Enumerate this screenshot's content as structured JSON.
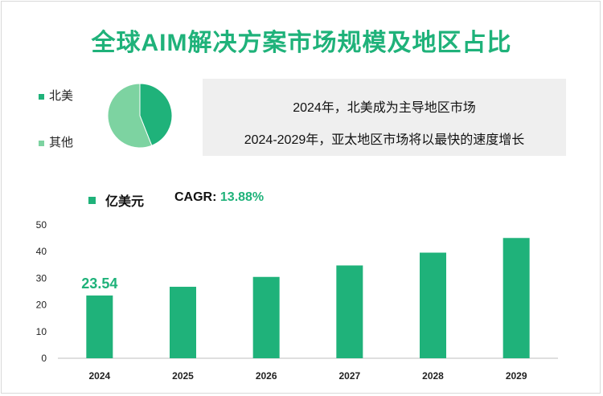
{
  "title": "全球AIM解决方案市场规模及地区占比",
  "pie": {
    "legend": [
      {
        "label": "北美",
        "color": "#1fb27a"
      },
      {
        "label": "其他",
        "color": "#7dd3a1"
      }
    ],
    "values": [
      44,
      56
    ]
  },
  "callout": {
    "line1": "2024年，北美成为主导地区市场",
    "line2": "2024-2029年，亚太地区市场将以最快的速度增长"
  },
  "unit_label": "亿美元",
  "cagr": {
    "label": "CAGR:",
    "value": "13.88%"
  },
  "colors": {
    "bar": "#1fb27a",
    "accent": "#1fb27a"
  },
  "chart_data": {
    "type": "bar",
    "categories": [
      "2024",
      "2025",
      "2026",
      "2027",
      "2028",
      "2029"
    ],
    "values": [
      23.54,
      26.8,
      30.5,
      34.8,
      39.6,
      45.1
    ],
    "data_labels": [
      "23.54",
      "",
      "",
      "",
      "",
      ""
    ],
    "ylim": [
      0,
      50
    ],
    "yticks": [
      0,
      10,
      20,
      30,
      40,
      50
    ],
    "legend": "亿美元",
    "grid": false
  }
}
